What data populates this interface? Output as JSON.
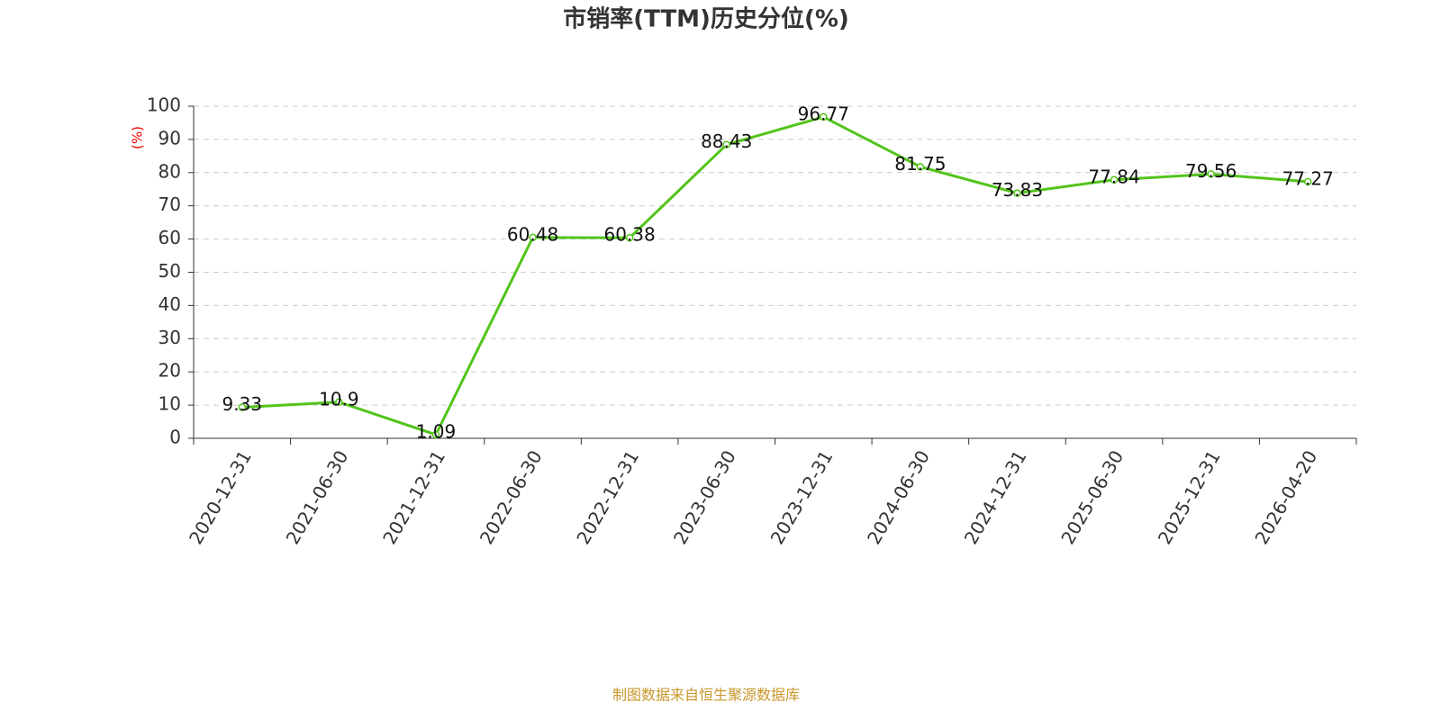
{
  "chart_data": {
    "type": "line",
    "title": "市销率(TTM)历史分位(%)",
    "y_label": "(%)",
    "categories": [
      "2020-12-31",
      "2021-06-30",
      "2021-12-31",
      "2022-06-30",
      "2022-12-31",
      "2023-06-30",
      "2023-12-31",
      "2024-06-30",
      "2024-12-31",
      "2025-06-30",
      "2025-12-31",
      "2026-04-20"
    ],
    "values": [
      9.33,
      10.9,
      1.09,
      60.48,
      60.38,
      88.43,
      96.77,
      81.75,
      73.83,
      77.84,
      79.56,
      77.27
    ],
    "color": "#52c41a",
    "ylim": [
      0,
      100
    ],
    "yticks": [
      0,
      10,
      20,
      30,
      40,
      50,
      60,
      70,
      80,
      90,
      100
    ],
    "grid": true,
    "source": "制图数据来自恒生聚源数据库"
  }
}
